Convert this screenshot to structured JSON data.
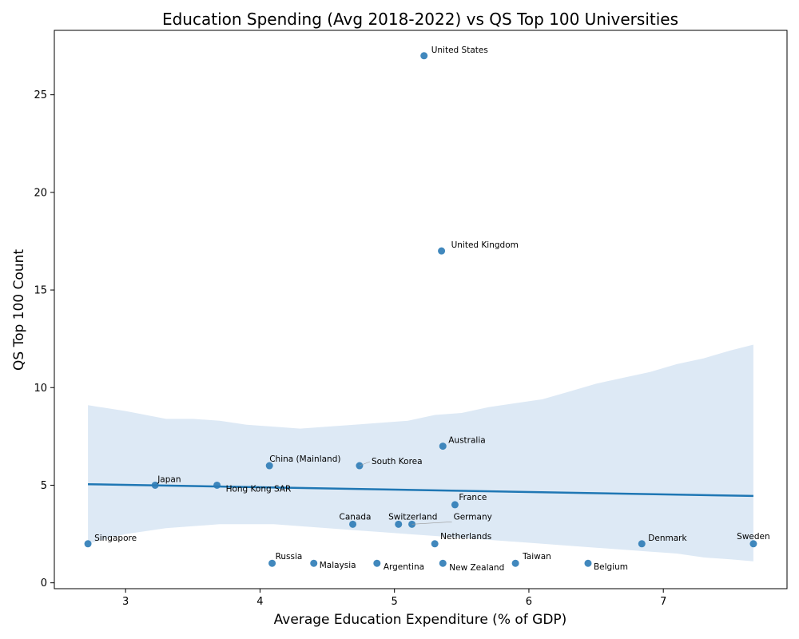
{
  "chart_data": {
    "type": "scatter",
    "title": "Education Spending (Avg 2018-2022) vs QS Top 100 Universities",
    "xlabel": "Average Education Expenditure (% of GDP)",
    "ylabel": "QS Top 100 Count",
    "xlim": [
      2.47,
      7.92
    ],
    "ylim": [
      -0.3,
      28.3
    ],
    "xticks": [
      3,
      4,
      5,
      6,
      7
    ],
    "yticks": [
      0,
      5,
      10,
      15,
      20,
      25
    ],
    "grid": false,
    "legend": "none",
    "colors": {
      "points": "#2c7bb6",
      "line": "#1f77b4",
      "band": "#c6dbef"
    },
    "points": [
      {
        "label": "United States",
        "x": 5.22,
        "y": 27
      },
      {
        "label": "United Kingdom",
        "x": 5.35,
        "y": 17
      },
      {
        "label": "Australia",
        "x": 5.36,
        "y": 7
      },
      {
        "label": "China (Mainland)",
        "x": 4.07,
        "y": 6
      },
      {
        "label": "South Korea",
        "x": 4.74,
        "y": 6
      },
      {
        "label": "Japan",
        "x": 3.22,
        "y": 5
      },
      {
        "label": "Hong Kong SAR",
        "x": 3.68,
        "y": 5
      },
      {
        "label": "France",
        "x": 5.45,
        "y": 4
      },
      {
        "label": "Canada",
        "x": 4.69,
        "y": 3
      },
      {
        "label": "Switzerland",
        "x": 5.03,
        "y": 3
      },
      {
        "label": "Germany",
        "x": 5.13,
        "y": 3
      },
      {
        "label": "Netherlands",
        "x": 5.3,
        "y": 2
      },
      {
        "label": "Singapore",
        "x": 2.72,
        "y": 2
      },
      {
        "label": "Denmark",
        "x": 6.84,
        "y": 2
      },
      {
        "label": "Sweden",
        "x": 7.67,
        "y": 2
      },
      {
        "label": "Russia",
        "x": 4.09,
        "y": 1
      },
      {
        "label": "Malaysia",
        "x": 4.4,
        "y": 1
      },
      {
        "label": "Argentina",
        "x": 4.87,
        "y": 1
      },
      {
        "label": "New Zealand",
        "x": 5.36,
        "y": 1
      },
      {
        "label": "Taiwan",
        "x": 5.9,
        "y": 1
      },
      {
        "label": "Belgium",
        "x": 6.44,
        "y": 1
      }
    ],
    "regression": {
      "x": [
        2.72,
        7.67
      ],
      "y": [
        5.05,
        4.45
      ],
      "band_x": [
        2.72,
        3.0,
        3.3,
        3.5,
        3.7,
        3.9,
        4.1,
        4.3,
        4.5,
        4.7,
        4.9,
        5.1,
        5.3,
        5.5,
        5.7,
        5.9,
        6.1,
        6.3,
        6.5,
        6.7,
        6.9,
        7.1,
        7.3,
        7.5,
        7.67
      ],
      "band_upper": [
        9.1,
        8.8,
        8.4,
        8.4,
        8.3,
        8.1,
        8.0,
        7.9,
        8.0,
        8.1,
        8.2,
        8.3,
        8.6,
        8.7,
        9.0,
        9.2,
        9.4,
        9.8,
        10.2,
        10.5,
        10.8,
        11.2,
        11.5,
        11.9,
        12.2
      ],
      "band_lower": [
        2.0,
        2.5,
        2.8,
        2.9,
        3.0,
        3.0,
        3.0,
        2.9,
        2.8,
        2.7,
        2.6,
        2.5,
        2.4,
        2.3,
        2.2,
        2.1,
        2.0,
        1.9,
        1.8,
        1.7,
        1.6,
        1.5,
        1.3,
        1.2,
        1.1
      ]
    }
  }
}
